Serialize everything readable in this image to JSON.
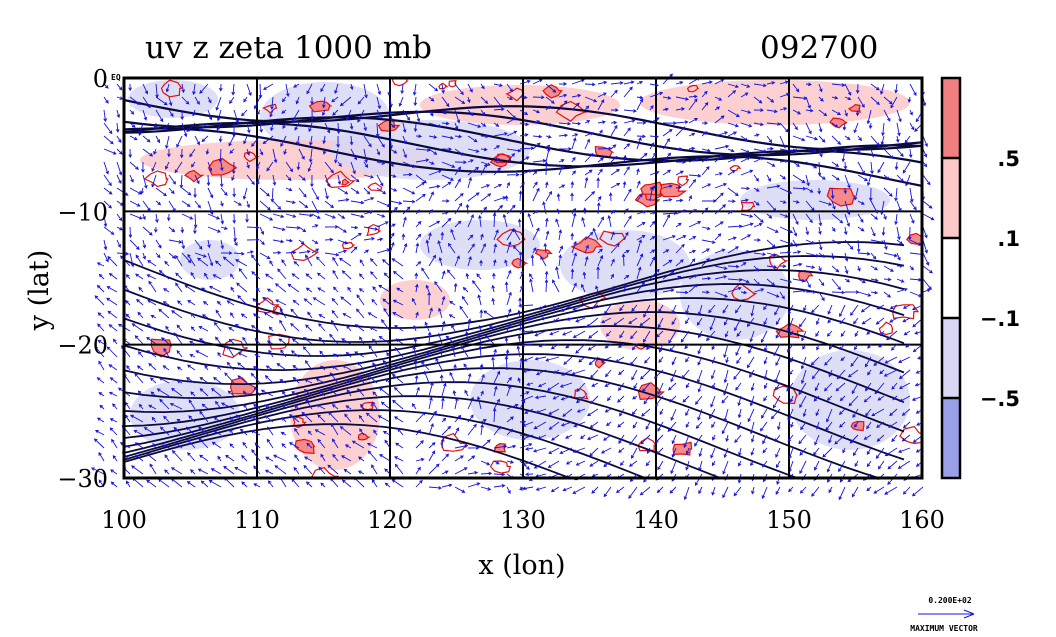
{
  "chart_data": {
    "type": "vector-contour-map",
    "title": "uv z zeta 1000 mb",
    "timestamp": "092700",
    "xlabel": "x (lon)",
    "ylabel": "y (lat)",
    "xlim": [
      100,
      160
    ],
    "ylim": [
      -30,
      0
    ],
    "x_ticks": [
      100,
      110,
      120,
      130,
      140,
      150,
      160
    ],
    "x_tick_labels": [
      "100",
      "110",
      "120",
      "130",
      "140",
      "150",
      "160"
    ],
    "y_ticks": [
      0,
      -10,
      -20,
      -30
    ],
    "y_tick_labels": [
      "0",
      "−10",
      "−20",
      "−30"
    ],
    "y_tick_suffix": "EQ",
    "grid": true,
    "colorbar": {
      "levels": [
        ".5",
        ".1",
        "−.1",
        "−.5"
      ],
      "colors": [
        "#f08080",
        "#fcc8c8",
        "#ffffff",
        "#d8d8f4",
        "#9aa0e8"
      ]
    },
    "vector_legend": {
      "value": "0.200E+02",
      "label": "MAXIMUM VECTOR"
    },
    "colors": {
      "vector": "#1414e0",
      "contour": "#0a0a40",
      "positive_zeta": "#f06060",
      "negative_zeta": "#c8ccf2",
      "zeta_contour": "#e01010"
    }
  }
}
